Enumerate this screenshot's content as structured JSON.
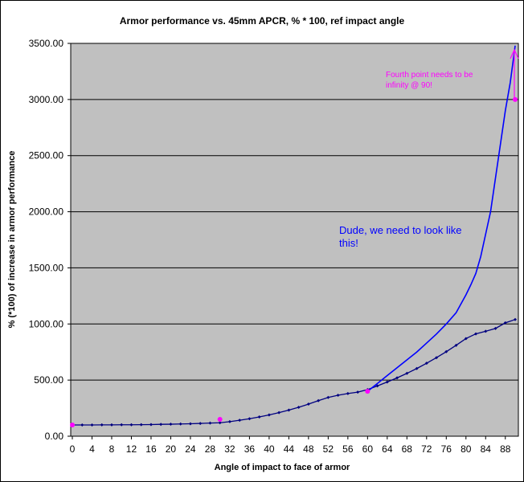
{
  "chart_data": {
    "type": "line",
    "title": "Armor performance vs. 45mm APCR, % * 100, ref impact angle",
    "xlabel": "Angle of impact to face of armor",
    "ylabel": "%  (*100) of increase in armor performance",
    "xlim": [
      0,
      91
    ],
    "ylim": [
      0,
      3500
    ],
    "x_ticks": [
      0,
      4,
      8,
      12,
      16,
      20,
      24,
      28,
      32,
      36,
      40,
      44,
      48,
      52,
      56,
      60,
      64,
      68,
      72,
      76,
      80,
      84,
      88
    ],
    "y_ticks": [
      "0.00",
      "500.00",
      "1000.00",
      "1500.00",
      "2000.00",
      "2500.00",
      "3000.00",
      "3500.00"
    ],
    "grid": "horizontal",
    "plot_background": "#c0c0c0",
    "series": [
      {
        "color": "#000080",
        "marker": "diamond",
        "x": [
          0,
          2,
          4,
          6,
          8,
          10,
          12,
          14,
          16,
          18,
          20,
          22,
          24,
          26,
          28,
          30,
          32,
          34,
          36,
          38,
          40,
          42,
          44,
          46,
          48,
          50,
          52,
          54,
          56,
          58,
          60,
          62,
          64,
          66,
          68,
          70,
          72,
          74,
          76,
          78,
          80,
          82,
          84,
          86,
          88,
          90
        ],
        "y": [
          100,
          100,
          100,
          101,
          101,
          102,
          102,
          103,
          104,
          106,
          107,
          109,
          111,
          114,
          117,
          120,
          130,
          142,
          156,
          172,
          190,
          210,
          233,
          258,
          286,
          317,
          345,
          365,
          380,
          393,
          415,
          448,
          483,
          520,
          560,
          603,
          650,
          700,
          753,
          810,
          870,
          912,
          935,
          960,
          1010,
          1040
        ]
      },
      {
        "color": "#0000ff",
        "marker": "none",
        "x": [
          60,
          62,
          64,
          66,
          68,
          70,
          72,
          74,
          76,
          78,
          80,
          81,
          82,
          83,
          84,
          85,
          86,
          87,
          88,
          89,
          90
        ],
        "y": [
          400,
          470,
          540,
          610,
          680,
          750,
          830,
          910,
          1000,
          1100,
          1260,
          1350,
          1450,
          1600,
          1800,
          2000,
          2300,
          2600,
          2900,
          3150,
          3480
        ]
      },
      {
        "color": "#ff00ff",
        "marker": "circle",
        "x": [
          0,
          30,
          60,
          90
        ],
        "y": [
          100,
          150,
          400,
          3000
        ]
      }
    ],
    "annotations": [
      {
        "text": "Dude, we need to look like",
        "color": "#0000ff"
      },
      {
        "text": "this!",
        "color": "#0000ff"
      },
      {
        "text": "Fourth point needs to be",
        "color": "#ff00ff"
      },
      {
        "text": "infinity @ 90!",
        "color": "#ff00ff"
      }
    ]
  }
}
